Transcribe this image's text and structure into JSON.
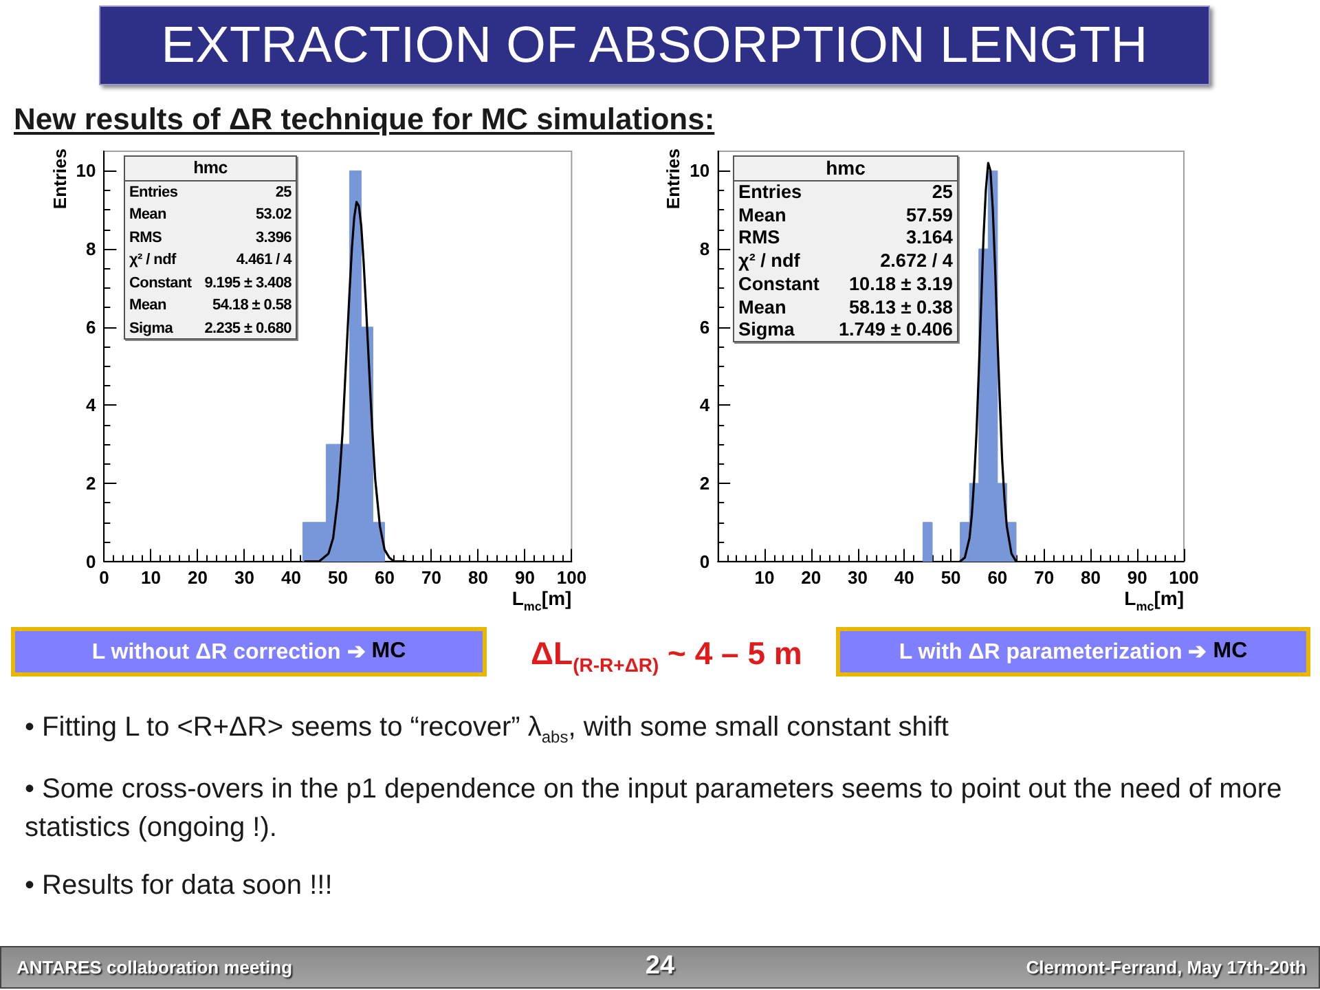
{
  "chart_data": [
    {
      "type": "other",
      "title": "EXTRACTION OF ABSORPTION LENGTH",
      "subtitle": "New results of ΔR technique for MC simulations:",
      "annotations": [
        "ΔL$_{(R-R+ΔR)}$ ~ 4 – 5 m",
        "• Fitting L to <R+ΔR> seems to “recover” λ$_{abs}$, with some small constant shift",
        "• Some cross-overs in the p1 dependence on the input parameters seems to point out the need of more statistics (ongoing !).",
        "• Results for data soon !!!",
        "ANTARES collaboration meeting",
        "24",
        "Clermont-Ferrand, May 17th-20th"
      ]
    },
    {
      "type": "histogram",
      "xlabel": "L$_{mc}$[m]",
      "ylabel": "Entries",
      "xlim": [
        0,
        100
      ],
      "xticks": [
        0,
        10,
        20,
        30,
        40,
        50,
        60,
        70,
        80,
        90,
        100
      ],
      "ylim": [
        0,
        10.5
      ],
      "yticks": [
        0,
        2,
        4,
        6,
        8,
        10
      ],
      "series": [
        {
          "color": "#7797d8",
          "bins": [
            42.5,
            45,
            47.5,
            50,
            52.5,
            55,
            57.5,
            60
          ],
          "values": [
            1,
            1,
            3,
            3,
            10,
            6,
            1
          ]
        },
        {
          "type": "line",
          "color": "#000000",
          "x": [
            43,
            46,
            47,
            48,
            49,
            50,
            50.5,
            51,
            51.5,
            52,
            52.5,
            53,
            53.5,
            54,
            54.5,
            55,
            55.5,
            56,
            56.5,
            57,
            57.5,
            58,
            59,
            60,
            61,
            62,
            64.5
          ],
          "values": [
            0,
            0,
            0.1,
            0.2,
            0.6,
            1.6,
            2.4,
            3.3,
            4.5,
            5.7,
            6.9,
            8.0,
            8.8,
            9.2,
            9.1,
            8.6,
            7.7,
            6.6,
            5.4,
            4.2,
            3.1,
            2.1,
            0.9,
            0.3,
            0.1,
            0,
            0
          ]
        }
      ],
      "annotations": [
        "hmc",
        "Entries",
        "25",
        "Mean",
        "53.02",
        "RMS",
        "3.396",
        "χ² / ndf",
        "4.461 / 4",
        "Constant",
        "9.195 ± 3.408",
        "Mean",
        "54.18 ± 0.58",
        "Sigma",
        "2.235 ± 0.680",
        "L without ΔR correction ➔",
        "MC"
      ]
    },
    {
      "type": "histogram",
      "xlabel": "L$_{mc}$[m]",
      "ylabel": "Entries",
      "xlim": [
        0,
        100
      ],
      "xticks": [
        {
          "value": 0,
          "label": null
        },
        10,
        20,
        30,
        40,
        50,
        60,
        70,
        80,
        90,
        100
      ],
      "ylim": [
        0,
        10.5
      ],
      "yticks": [
        0,
        2,
        4,
        6,
        8,
        10
      ],
      "series": [
        {
          "color": "#7797d8",
          "bins": [
            44,
            46,
            48,
            50,
            52,
            54,
            56,
            58,
            60,
            62,
            64
          ],
          "values": [
            1,
            0,
            0,
            0,
            1,
            2,
            8,
            10,
            2,
            1
          ]
        },
        {
          "type": "line",
          "color": "#000000",
          "x": [
            52,
            53,
            54,
            54.5,
            55,
            55.5,
            56,
            56.5,
            57,
            57.5,
            58,
            58.5,
            59,
            59.5,
            60,
            60.5,
            61,
            61.5,
            62,
            63,
            64
          ],
          "values": [
            0,
            0.1,
            0.6,
            1.2,
            2.1,
            3.3,
            4.9,
            6.6,
            8.3,
            9.5,
            10.2,
            10.0,
            9.0,
            7.5,
            5.7,
            4.1,
            2.6,
            1.6,
            0.9,
            0.2,
            0
          ]
        }
      ],
      "annotations": [
        "hmc",
        "Entries",
        "25",
        "Mean",
        "57.59",
        "RMS",
        "3.164",
        "χ² / ndf",
        "2.672 / 4",
        "Constant",
        "10.18 ± 3.19",
        "Mean",
        "58.13 ± 0.38",
        "Sigma",
        "1.749 ± 0.406",
        "L with ΔR parameterization ➔",
        "MC"
      ]
    }
  ]
}
